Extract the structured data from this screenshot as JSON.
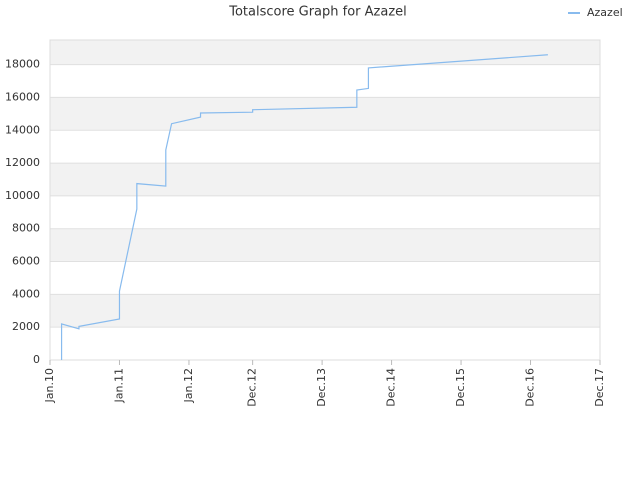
{
  "chart_data": {
    "type": "line",
    "title": "Totalscore Graph for Azazel",
    "x": [
      "2010-03",
      "2010-03",
      "2010-06",
      "2010-06",
      "2011-01",
      "2011-01",
      "2011-04",
      "2011-04",
      "2011-09",
      "2011-09",
      "2011-10",
      "2012-03",
      "2012-03",
      "2012-12",
      "2012-12",
      "2014-06",
      "2014-06",
      "2014-08",
      "2014-08",
      "2017-03"
    ],
    "series": [
      {
        "name": "Azazel",
        "color": "#88bbee",
        "values": [
          0,
          2200,
          1900,
          2050,
          2500,
          4200,
          9200,
          10750,
          10600,
          12800,
          14400,
          14800,
          15050,
          15100,
          15250,
          15400,
          16450,
          16550,
          17800,
          18600
        ]
      }
    ],
    "xlim": [
      "2010-01",
      "2017-12"
    ],
    "xticks": [
      {
        "value": "2010-01",
        "label": "Jan.10"
      },
      {
        "value": "2011-01",
        "label": "Jan.11"
      },
      {
        "value": "2012-01",
        "label": "Jan.12"
      },
      {
        "value": "2012-12",
        "label": "Dec.12"
      },
      {
        "value": "2013-12",
        "label": "Dec.13"
      },
      {
        "value": "2014-12",
        "label": "Dec.14"
      },
      {
        "value": "2015-12",
        "label": "Dec.15"
      },
      {
        "value": "2016-12",
        "label": "Dec.16"
      },
      {
        "value": "2017-12",
        "label": "Dec.17"
      }
    ],
    "ylim": [
      0,
      19500
    ],
    "yticks": [
      0,
      2000,
      4000,
      6000,
      8000,
      10000,
      12000,
      14000,
      16000,
      18000
    ],
    "grid": true,
    "legend": "top-right"
  }
}
